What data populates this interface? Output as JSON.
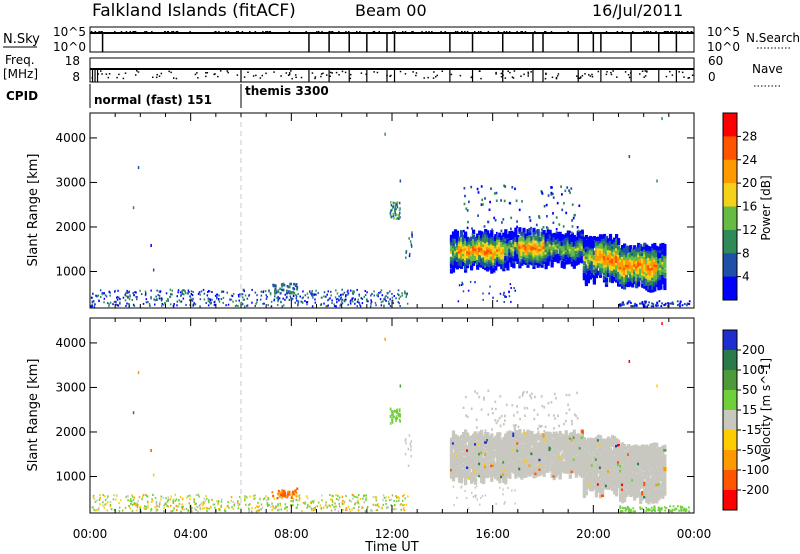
{
  "header": {
    "station": "Falkland Islands (fitACF)",
    "beam": "Beam 00",
    "date": "16/Jul/2011"
  },
  "small_panels": {
    "nsky_label": "N.Sky",
    "nsky_ticks": [
      "10^5",
      "10^0"
    ],
    "nsearch_label": "N.Search",
    "nsearch_ticks": [
      "10^5",
      "10^0"
    ],
    "freq_label_1": "Freq.",
    "freq_label_2": "[MHz]",
    "freq_ticks": [
      "18",
      "8"
    ],
    "nave_label": "Nave",
    "nave_ticks": [
      "60",
      "0"
    ],
    "cpid_label": "CPID",
    "cpid_segments": [
      {
        "name": "normal (fast) 151",
        "start_hour": 0
      },
      {
        "name": "themis 3300",
        "start_hour": 6
      }
    ]
  },
  "x_axis": {
    "label": "Time UT",
    "ticks": [
      "00:00",
      "04:00",
      "08:00",
      "12:00",
      "16:00",
      "20:00",
      "00:00"
    ]
  },
  "colors": {
    "power_scale": [
      "#0000ff",
      "#1f4fa8",
      "#2e8b57",
      "#66bb44",
      "#f5d21a",
      "#ff9900",
      "#ff5500",
      "#ff0000"
    ],
    "velocity_scale": [
      "#1f2fcf",
      "#2a7a4a",
      "#4e9a3a",
      "#6fd03a",
      "#c8c8c0",
      "#ffcc00",
      "#ff9900",
      "#ff5500",
      "#ff0000"
    ],
    "dashed_marker": "#c8c8c8"
  },
  "chart_data": [
    {
      "type": "heatmap",
      "title": "",
      "xlabel": "Time UT",
      "ylabel": "Slant Range [km]",
      "xlim": [
        0,
        24
      ],
      "ylim": [
        180,
        4560
      ],
      "yticks": [
        "1000",
        "2000",
        "3000",
        "4000"
      ],
      "colorbar": {
        "label": "Power [dB]",
        "ticks": [
          "28",
          "24",
          "20",
          "16",
          "12",
          "8",
          "4"
        ],
        "range": [
          0,
          32
        ]
      },
      "regions": [
        {
          "hours": [
            0.0,
            12.6
          ],
          "range_km": [
            180,
            560
          ],
          "value": "4-12 dB (sparse)"
        },
        {
          "hours": [
            14.3,
            16.5
          ],
          "range_km": [
            900,
            1800
          ],
          "value": "8-28 dB"
        },
        {
          "hours": [
            16.5,
            19.6
          ],
          "range_km": [
            1000,
            1800
          ],
          "value": "8-24 dB"
        },
        {
          "hours": [
            19.6,
            22.7
          ],
          "range_km": [
            500,
            1600
          ],
          "value": "12-28 dB"
        },
        {
          "hours": [
            14.8,
            19.5
          ],
          "range_km": [
            1800,
            3000
          ],
          "value": "4-12 dB (sparse)"
        },
        {
          "hours": [
            11.9,
            12.2
          ],
          "range_km": [
            2200,
            2500
          ],
          "value": "4-12 dB"
        }
      ]
    },
    {
      "type": "heatmap",
      "title": "",
      "xlabel": "Time UT",
      "ylabel": "Slant Range [km]",
      "xlim": [
        0,
        24
      ],
      "ylim": [
        180,
        4560
      ],
      "yticks": [
        "1000",
        "2000",
        "3000",
        "4000"
      ],
      "colorbar": {
        "label": "Velocity [m s^-1]",
        "ticks": [
          "200",
          "100",
          "50",
          "15",
          "-15",
          "-50",
          "-100",
          "-200"
        ],
        "range": [
          -250,
          250
        ]
      },
      "regions": [
        {
          "hours": [
            0.0,
            12.6
          ],
          "range_km": [
            180,
            600
          ],
          "value": "-50 to 100 m/s (sparse)"
        },
        {
          "hours": [
            7.1,
            8.2
          ],
          "range_km": [
            450,
            750
          ],
          "value": "-100 to -50 m/s"
        },
        {
          "hours": [
            14.3,
            22.7
          ],
          "range_km": [
            500,
            1900
          ],
          "value": "-15 to 15 m/s (ground scatter)"
        },
        {
          "hours": [
            14.8,
            19.5
          ],
          "range_km": [
            1900,
            3000
          ],
          "value": "-15 to 15 m/s (sparse)"
        },
        {
          "hours": [
            21.0,
            23.8
          ],
          "range_km": [
            180,
            350
          ],
          "value": "15 to 50 m/s"
        }
      ]
    }
  ]
}
